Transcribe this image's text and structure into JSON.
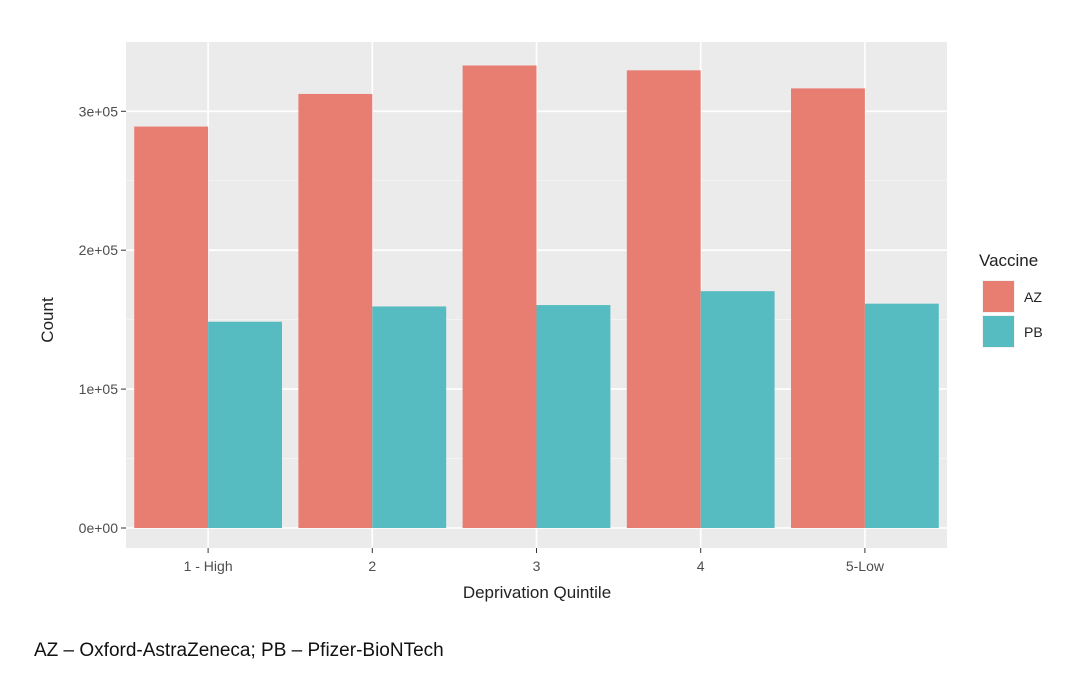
{
  "chart_data": {
    "type": "bar",
    "categories": [
      "1 - High",
      "2",
      "3",
      "4",
      "5-Low"
    ],
    "series": [
      {
        "name": "AZ",
        "values": [
          289000,
          312500,
          333000,
          329500,
          316500
        ],
        "color": "#e87d72"
      },
      {
        "name": "PB",
        "values": [
          148500,
          159500,
          160500,
          170500,
          161500
        ],
        "color": "#56bcc2"
      }
    ],
    "xlabel": "Deprivation Quintile",
    "ylabel": "Count",
    "ylim": [
      0,
      350000
    ],
    "yticks": [
      0,
      100000,
      200000,
      300000
    ],
    "ytick_labels": [
      "0e+00",
      "1e+05",
      "2e+05",
      "3e+05"
    ],
    "legend": {
      "title": "Vaccine",
      "position": "right"
    },
    "grid": true,
    "background": "#ebebeb"
  },
  "caption": "AZ – Oxford-AstraZeneca; PB – Pfizer-BioNTech"
}
